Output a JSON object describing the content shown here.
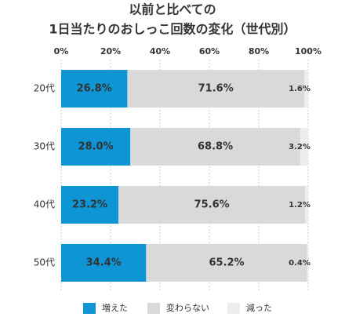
{
  "chart_data": {
    "type": "stacked-bar-horizontal",
    "title": [
      "以前と比べての",
      "1日当たりのおしっこ回数の変化（世代別）"
    ],
    "categories": [
      "20代",
      "30代",
      "40代",
      "50代"
    ],
    "series": [
      {
        "name": "増えた",
        "color": "#0e95d5",
        "values": [
          26.8,
          28.0,
          23.2,
          34.4
        ],
        "value_labels": [
          "26.8%",
          "28.0%",
          "23.2%",
          "34.4%"
        ]
      },
      {
        "name": "変わらない",
        "color": "#d9d9d9",
        "values": [
          71.6,
          68.8,
          75.6,
          65.2
        ],
        "value_labels": [
          "71.6%",
          "68.8%",
          "75.6%",
          "65.2%"
        ]
      },
      {
        "name": "減った",
        "color": "#ededed",
        "values": [
          1.6,
          3.2,
          1.2,
          0.4
        ],
        "value_labels": [
          "1.6%",
          "3.2%",
          "1.2%",
          "0.4%"
        ]
      }
    ],
    "xlim": [
      0,
      100
    ],
    "xticks": [
      {
        "value": 0,
        "label": "0%"
      },
      {
        "value": 20,
        "label": "20%"
      },
      {
        "value": 40,
        "label": "40%"
      },
      {
        "value": 60,
        "label": "60%"
      },
      {
        "value": 80,
        "label": "80%"
      },
      {
        "value": 100,
        "label": "100%"
      }
    ],
    "grid": true
  }
}
